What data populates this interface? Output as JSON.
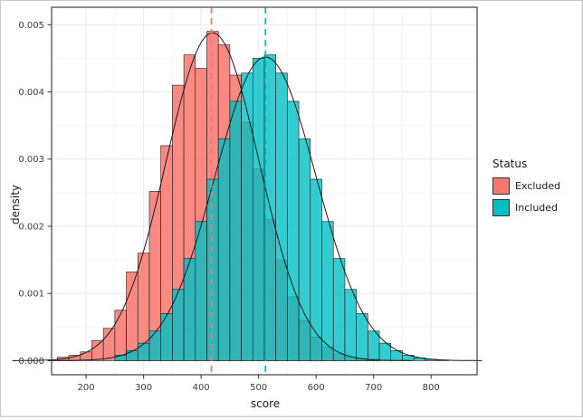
{
  "chart_data": {
    "type": "bar",
    "subtype": "overlaid-histograms-with-density-curves",
    "title": "",
    "xlabel": "score",
    "ylabel": "density",
    "xlim": [
      140,
      880
    ],
    "ylim": [
      0,
      0.005
    ],
    "xticks": [
      200,
      300,
      400,
      500,
      600,
      700,
      800
    ],
    "yticks": [
      0.0,
      0.001,
      0.002,
      0.003,
      0.004,
      0.005
    ],
    "bin_width": 20,
    "legend": {
      "title": "Status",
      "position": "right"
    },
    "style": {
      "grid_major": "#ebebeb",
      "grid_minor": "#f6f6f6",
      "panel_border": "#404040",
      "bar_stroke": "#1a1a1a",
      "curve_stroke": "#1a1a1a"
    },
    "series": [
      {
        "name": "Excluded",
        "color": "#F8766D",
        "mean_line": 418,
        "curve": {
          "mean": 420,
          "sd": 81,
          "peak": 0.00488
        },
        "bin_centers": [
          160,
          180,
          200,
          220,
          240,
          260,
          280,
          300,
          320,
          340,
          360,
          380,
          400,
          420,
          440,
          460,
          480,
          500,
          520,
          540,
          560,
          580,
          600,
          620,
          640,
          660,
          680,
          700
        ],
        "densities": [
          5e-05,
          8e-05,
          0.00013,
          0.0003,
          0.00048,
          0.00075,
          0.00132,
          0.0016,
          0.00252,
          0.0032,
          0.0041,
          0.00455,
          0.00435,
          0.0049,
          0.0047,
          0.00425,
          0.00355,
          0.00285,
          0.0021,
          0.0015,
          0.00095,
          0.0006,
          0.00035,
          0.0002,
          0.0001,
          5e-05,
          3e-05,
          2e-05
        ]
      },
      {
        "name": "Included",
        "color": "#00BFC4",
        "mean_line": 512,
        "curve": {
          "mean": 512,
          "sd": 88,
          "peak": 0.00452
        },
        "bin_centers": [
          260,
          280,
          300,
          320,
          340,
          360,
          380,
          400,
          420,
          440,
          460,
          480,
          500,
          520,
          540,
          560,
          580,
          600,
          620,
          640,
          660,
          680,
          700,
          720,
          740,
          760,
          780,
          800,
          820
        ],
        "densities": [
          8e-05,
          0.00015,
          0.00026,
          0.00044,
          0.0007,
          0.00106,
          0.00152,
          0.00207,
          0.0027,
          0.0033,
          0.00386,
          0.00428,
          0.0045,
          0.00455,
          0.00428,
          0.00386,
          0.0033,
          0.0027,
          0.00207,
          0.00152,
          0.00106,
          0.0007,
          0.00044,
          0.00026,
          0.00015,
          8e-05,
          4e-05,
          2e-05,
          1e-05
        ]
      }
    ]
  }
}
